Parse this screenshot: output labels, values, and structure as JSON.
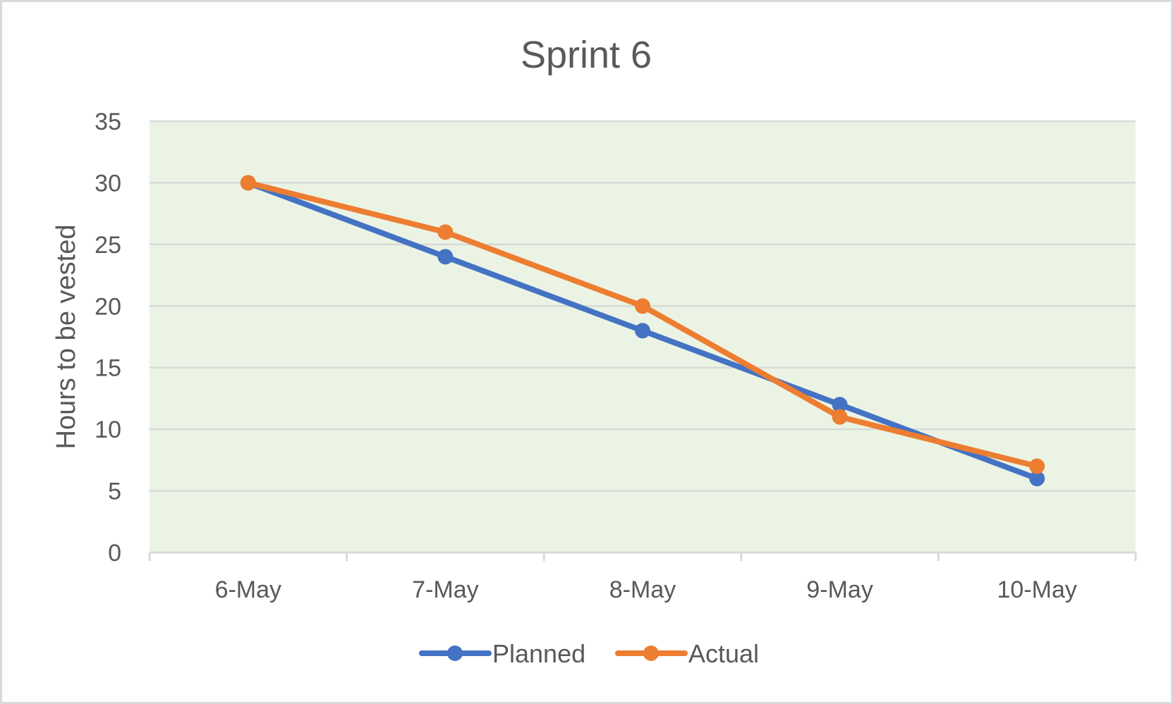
{
  "chart_data": {
    "type": "line",
    "title": "Sprint 6",
    "xlabel": "",
    "ylabel": "Hours to be vested",
    "categories": [
      "6-May",
      "7-May",
      "8-May",
      "9-May",
      "10-May"
    ],
    "series": [
      {
        "name": "Planned",
        "values": [
          30,
          24,
          18,
          12,
          6
        ],
        "color": "#4472C4"
      },
      {
        "name": "Actual",
        "values": [
          30,
          26,
          20,
          11,
          7
        ],
        "color": "#ED7D31"
      }
    ],
    "ylim": [
      0,
      35
    ],
    "yticks": [
      "0",
      "5",
      "10",
      "15",
      "20",
      "25",
      "30",
      "35"
    ],
    "grid": true,
    "legend_position": "bottom",
    "plot_background": "#EBF4E4",
    "gridline_color": "#D9D9D9",
    "frame_color": "#D9D9D9"
  }
}
